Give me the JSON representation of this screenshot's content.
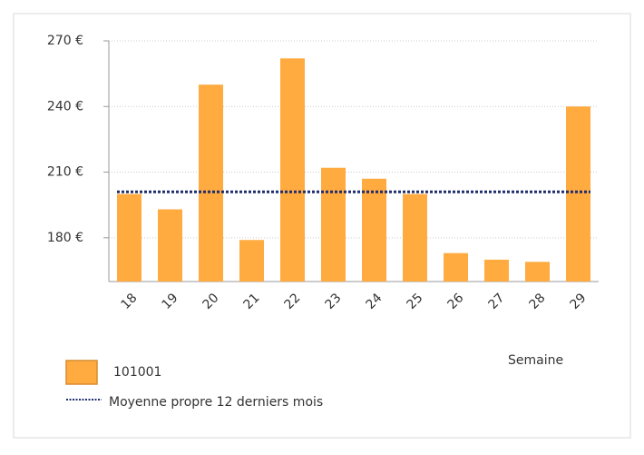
{
  "chart_data": {
    "type": "bar",
    "categories": [
      "18",
      "19",
      "20",
      "21",
      "22",
      "23",
      "24",
      "25",
      "26",
      "27",
      "28",
      "29"
    ],
    "series": [
      {
        "name": "101001",
        "type": "bar",
        "color": "#ffab40",
        "values": [
          200,
          193,
          250,
          179,
          262,
          212,
          207,
          200,
          173,
          170,
          169,
          240
        ]
      },
      {
        "name": "Moyenne propre 12 derniers mois",
        "type": "line",
        "color": "#1f2d6e",
        "values": [
          201,
          201,
          201,
          201,
          201,
          201,
          201,
          201,
          201,
          201,
          201,
          201
        ]
      }
    ],
    "ylim": [
      160,
      270
    ],
    "yticks": [
      {
        "value": 180,
        "label": "180 €"
      },
      {
        "value": 210,
        "label": "210 €"
      },
      {
        "value": 240,
        "label": "240 €"
      },
      {
        "value": 270,
        "label": "270 €"
      }
    ],
    "xlabel": "Semaine",
    "grid": true
  }
}
